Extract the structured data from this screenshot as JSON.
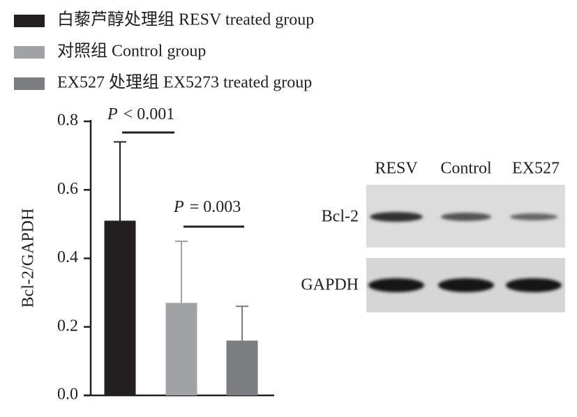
{
  "chart_data": {
    "type": "bar",
    "categories": [
      null
    ],
    "series": [
      {
        "name": "白藜芦醇处理组 RESV treated group",
        "color": "#231f20",
        "values": [
          0.51
        ],
        "errors": [
          0.23
        ]
      },
      {
        "name": "对照组 Control group",
        "color": "#a0a2a6",
        "values": [
          0.27
        ],
        "errors": [
          0.18
        ]
      },
      {
        "name": "EX527 处理组 EX5273 treated group",
        "color": "#7c7d80",
        "values": [
          0.16
        ],
        "errors": [
          0.1
        ]
      }
    ],
    "y_label": "Bcl-2/GAPDH",
    "ylim": [
      0,
      0.8
    ],
    "yticks": [
      {
        "value": 0,
        "label": "0.0"
      },
      0.2,
      0.4,
      0.6,
      0.8
    ],
    "annotations": [
      {
        "parts": [
          "P",
          "< 0.001"
        ]
      },
      {
        "parts": [
          "P",
          "= 0.003"
        ]
      }
    ],
    "grid": false
  },
  "blot": {
    "lanes": [
      "RESV",
      "Control",
      "EX527"
    ],
    "rows": [
      "Bcl-2",
      "GAPDH"
    ]
  }
}
